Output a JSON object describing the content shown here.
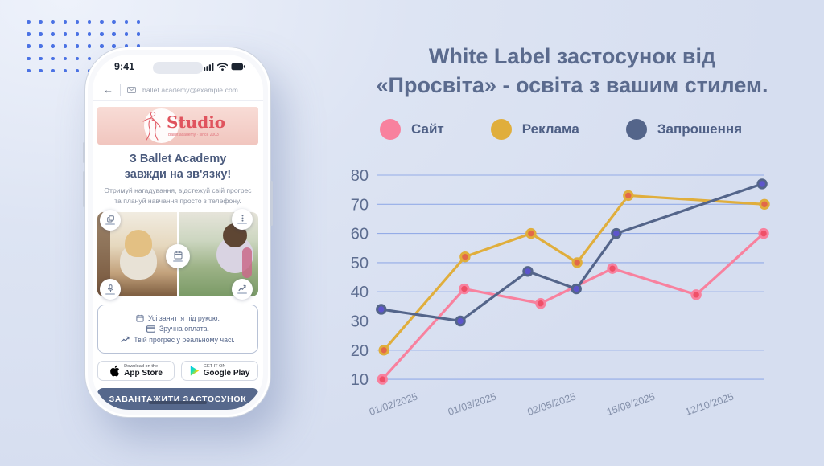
{
  "page": {
    "background": "#dde4f3",
    "accent_dots": "#4b72e4"
  },
  "phone": {
    "status_bar": {
      "time": "9:41"
    },
    "nav": {
      "back_icon": "←",
      "email": "ballet.academy@example.com"
    },
    "banner": {
      "logo_text": "Studio",
      "tagline": "Ballet academy · since 2003",
      "logo_color": "#e0545e"
    },
    "heading_line1": "З Ballet Academy",
    "heading_line2": "завжди на зв'язку!",
    "description": "Отримуй нагадування, відстежуй свій прогрес та плануй навчання просто з телефону.",
    "features": [
      {
        "icon": "calendar-icon",
        "label": "Усі заняття під рукою."
      },
      {
        "icon": "card-icon",
        "label": "Зручна оплата."
      },
      {
        "icon": "trend-up-icon",
        "label": "Твій прогрес у реальному часі."
      }
    ],
    "stores": {
      "appstore_top": "Download on the",
      "appstore_bottom": "App Store",
      "gplay_top": "GET IT ON",
      "gplay_bottom": "Google Play"
    },
    "cta_label": "ЗАВАНТАЖИТИ ЗАСТОСУНОК"
  },
  "main": {
    "title_line1": "White Label застосунок від",
    "title_line2": "«Просвіта» - освіта з вашим стилем."
  },
  "chart_data": {
    "type": "line",
    "title": "",
    "xlabel": "",
    "ylabel": "",
    "grid": "horizontal",
    "legend_position": "top",
    "ylim": [
      10,
      80
    ],
    "y_ticks": [
      10,
      20,
      30,
      40,
      50,
      60,
      70,
      80
    ],
    "x_tick_labels": [
      "01/02/2025",
      "01/03/2025",
      "02/05/2025",
      "15/09/2025",
      "12/10/2025"
    ],
    "x_tick_pos": [
      0.046,
      0.249,
      0.454,
      0.658,
      0.861
    ],
    "series": [
      {
        "name": "Сайт",
        "color": "#f8819e",
        "marker_fill": "#ef5068",
        "points": [
          {
            "x": 0.015,
            "y": 10
          },
          {
            "x": 0.226,
            "y": 41
          },
          {
            "x": 0.423,
            "y": 36
          },
          {
            "x": 0.608,
            "y": 48
          },
          {
            "x": 0.824,
            "y": 39
          },
          {
            "x": 0.998,
            "y": 60
          }
        ]
      },
      {
        "name": "Реклама",
        "color": "#e0ae3c",
        "marker_fill": "#e2684a",
        "points": [
          {
            "x": 0.019,
            "y": 20
          },
          {
            "x": 0.228,
            "y": 52
          },
          {
            "x": 0.398,
            "y": 60
          },
          {
            "x": 0.517,
            "y": 50
          },
          {
            "x": 0.649,
            "y": 73
          },
          {
            "x": 1.0,
            "y": 70
          }
        ]
      },
      {
        "name": "Запрошення",
        "color": "#54658a",
        "marker_fill": "#5d55cc",
        "points": [
          {
            "x": 0.012,
            "y": 34
          },
          {
            "x": 0.216,
            "y": 30
          },
          {
            "x": 0.39,
            "y": 47
          },
          {
            "x": 0.515,
            "y": 41
          },
          {
            "x": 0.618,
            "y": 60
          },
          {
            "x": 0.994,
            "y": 77
          }
        ]
      }
    ]
  }
}
